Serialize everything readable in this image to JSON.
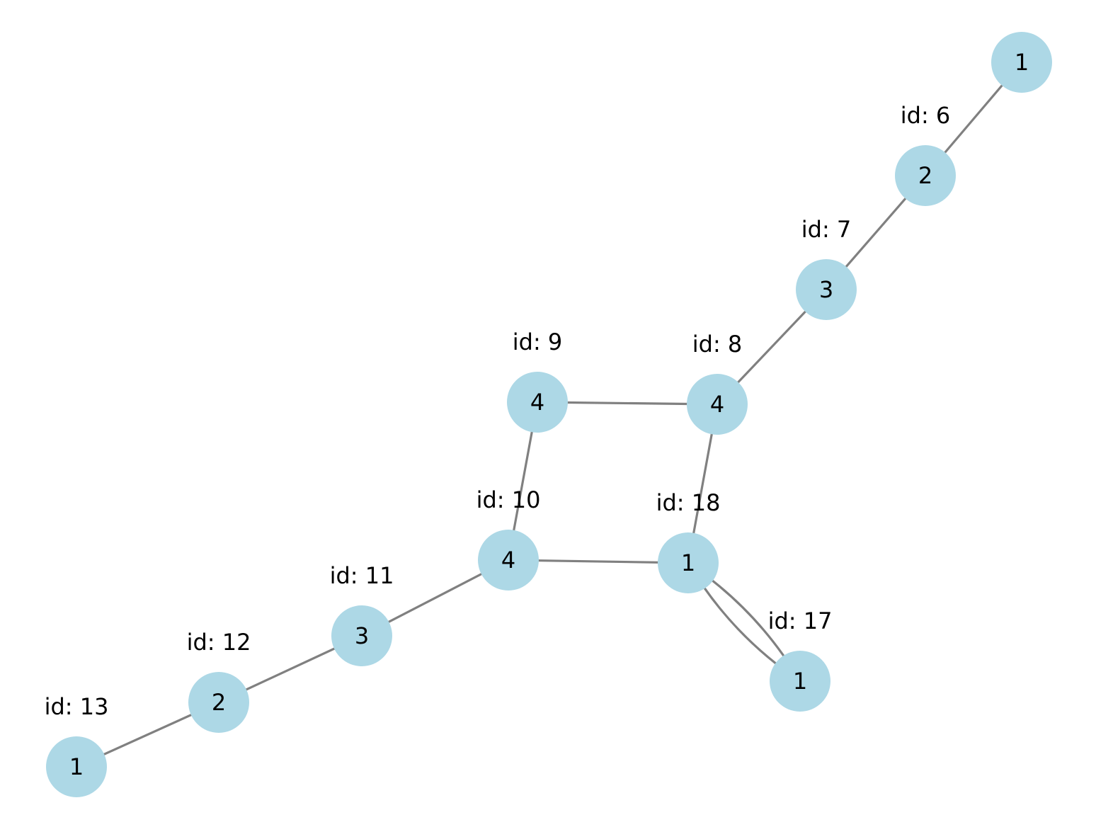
{
  "colors": {
    "node_fill": "#add8e6",
    "edge_stroke": "#808080",
    "text": "#000000",
    "background": "#ffffff"
  },
  "nodes": [
    {
      "key": "top",
      "value": "1",
      "id_label": ""
    },
    {
      "key": "n6",
      "value": "2",
      "id_label": "id: 6"
    },
    {
      "key": "n7",
      "value": "3",
      "id_label": "id: 7"
    },
    {
      "key": "n8",
      "value": "4",
      "id_label": "id: 8"
    },
    {
      "key": "n9",
      "value": "4",
      "id_label": "id: 9"
    },
    {
      "key": "n10",
      "value": "4",
      "id_label": "id: 10"
    },
    {
      "key": "n18",
      "value": "1",
      "id_label": "id: 18"
    },
    {
      "key": "n17",
      "value": "1",
      "id_label": "id: 17"
    },
    {
      "key": "n11",
      "value": "3",
      "id_label": "id: 11"
    },
    {
      "key": "n12",
      "value": "2",
      "id_label": "id: 12"
    },
    {
      "key": "n13",
      "value": "1",
      "id_label": "id: 13"
    }
  ],
  "edges": [
    {
      "from": "top",
      "to": "n6",
      "curve": 0
    },
    {
      "from": "n6",
      "to": "n7",
      "curve": 0
    },
    {
      "from": "n7",
      "to": "n8",
      "curve": 0
    },
    {
      "from": "n8",
      "to": "n9",
      "curve": 0
    },
    {
      "from": "n8",
      "to": "n18",
      "curve": 0
    },
    {
      "from": "n9",
      "to": "n10",
      "curve": 0
    },
    {
      "from": "n10",
      "to": "n18",
      "curve": 0
    },
    {
      "from": "n18",
      "to": "n17",
      "curve": 1
    },
    {
      "from": "n18",
      "to": "n17",
      "curve": -1
    },
    {
      "from": "n10",
      "to": "n11",
      "curve": 0
    },
    {
      "from": "n11",
      "to": "n12",
      "curve": 0
    },
    {
      "from": "n12",
      "to": "n13",
      "curve": 0
    }
  ]
}
